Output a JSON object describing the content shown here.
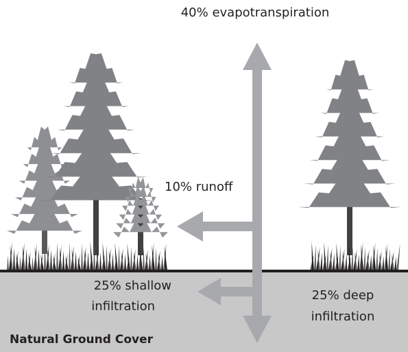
{
  "title": "Natural Ground Cover",
  "flows": [
    {
      "label": "40% evapotranspiration"
    },
    {
      "label": "10% runoff"
    },
    {
      "lines": [
        "25% shallow",
        "infiltration"
      ]
    },
    {
      "lines": [
        "25% deep",
        "infiltration"
      ]
    }
  ]
}
